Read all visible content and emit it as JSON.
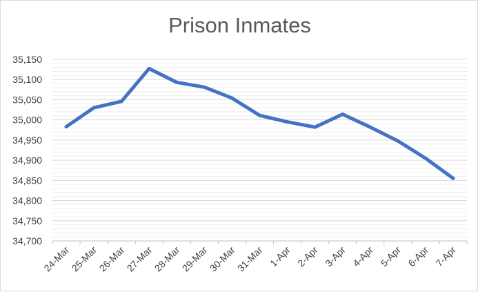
{
  "chart_data": {
    "type": "line",
    "title": "Prison Inmates",
    "xlabel": "",
    "ylabel": "",
    "categories": [
      "24-Mar",
      "25-Mar",
      "26-Mar",
      "27-Mar",
      "28-Mar",
      "29-Mar",
      "30-Mar",
      "31-Mar",
      "1-Apr",
      "2-Apr",
      "3-Apr",
      "4-Apr",
      "5-Apr",
      "6-Apr",
      "7-Apr"
    ],
    "series": [
      {
        "values": [
          34983,
          35030,
          35046,
          35127,
          35093,
          35081,
          35054,
          35011,
          34995,
          34982,
          35014,
          34982,
          34948,
          34905,
          34855
        ],
        "color": "#4472c4"
      }
    ],
    "ylim": [
      34700,
      35150
    ],
    "yticks": [
      34700,
      34750,
      34800,
      34850,
      34900,
      34950,
      35000,
      35050,
      35100,
      35150
    ],
    "ytick_labels": [
      "34,700",
      "34,750",
      "34,800",
      "34,850",
      "34,900",
      "34,950",
      "35,000",
      "35,050",
      "35,100",
      "35,150"
    ],
    "grid": true,
    "legend": "none"
  }
}
